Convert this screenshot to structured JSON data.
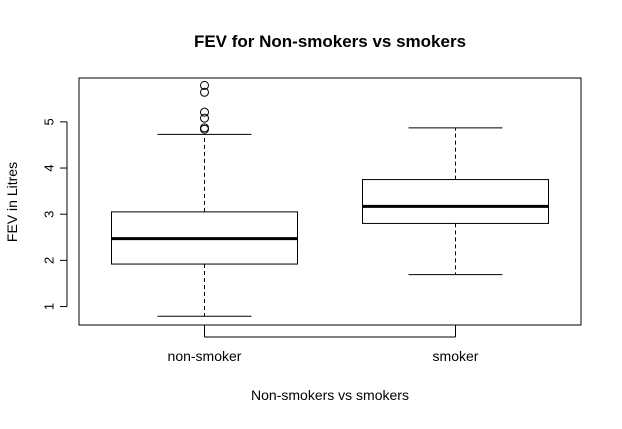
{
  "chart_data": {
    "type": "boxplot",
    "title": "FEV for Non-smokers vs smokers",
    "xlabel": "Non-smokers vs smokers",
    "ylabel": "FEV in Litres",
    "ylim": [
      0.6,
      5.95
    ],
    "yticks": [
      1,
      2,
      3,
      4,
      5
    ],
    "categories": [
      "non-smoker",
      "smoker"
    ],
    "boxes": [
      {
        "category": "non-smoker",
        "whisker_low": 0.79,
        "q1": 1.92,
        "median": 2.47,
        "q3": 3.05,
        "whisker_high": 4.73,
        "outliers": [
          4.84,
          4.87,
          5.08,
          5.21,
          5.64,
          5.79
        ]
      },
      {
        "category": "smoker",
        "whisker_low": 1.69,
        "q1": 2.8,
        "median": 3.17,
        "q3": 3.75,
        "whisker_high": 4.87,
        "outliers": []
      }
    ]
  }
}
